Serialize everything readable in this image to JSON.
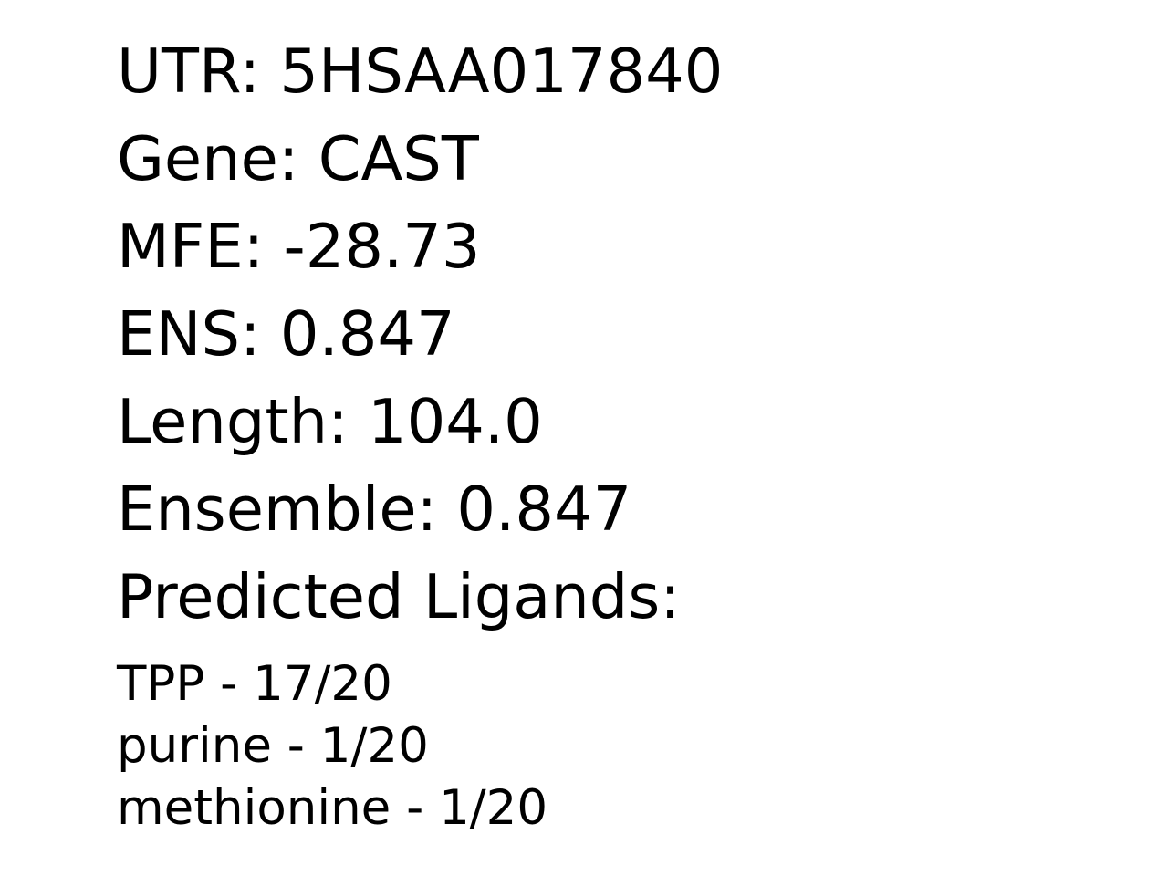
{
  "record": {
    "utr": "UTR: 5HSAA017840",
    "gene": "Gene: CAST",
    "mfe": "MFE: -28.73",
    "ens": "ENS: 0.847",
    "length": "Length: 104.0",
    "ensemble": "Ensemble: 0.847",
    "ligands_heading": "Predicted Ligands:"
  },
  "ligands": [
    "TPP - 17/20",
    "purine - 1/20",
    "methionine - 1/20"
  ]
}
